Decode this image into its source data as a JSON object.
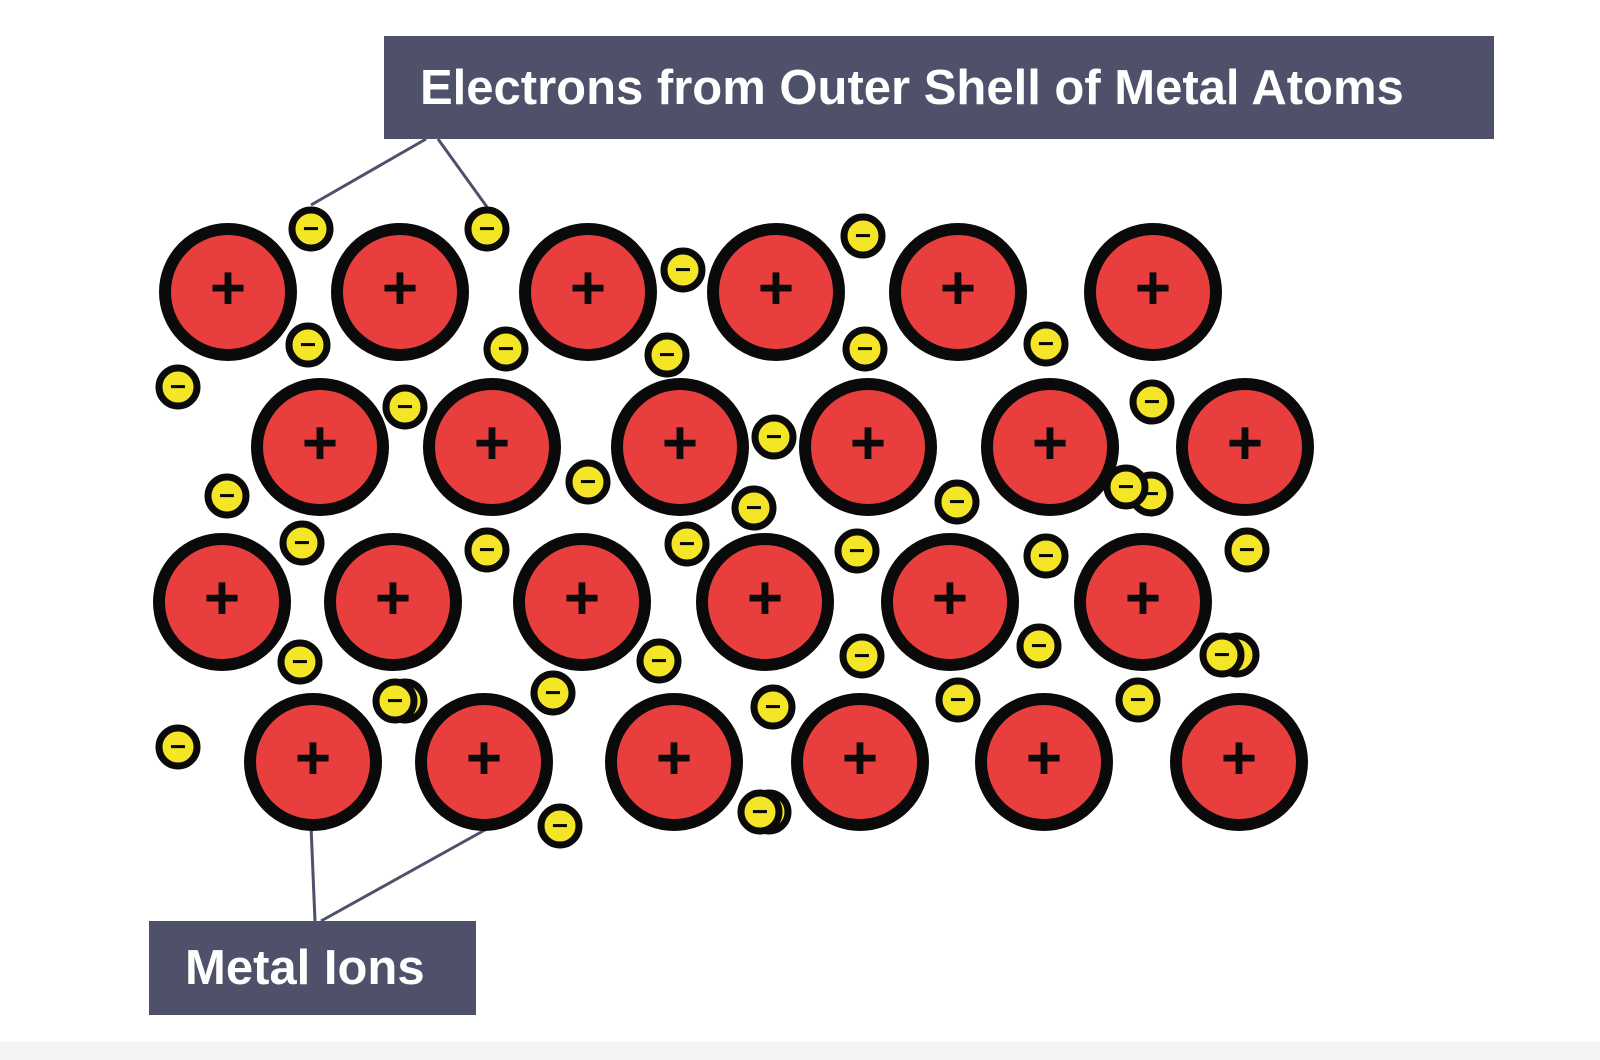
{
  "labels": {
    "electrons": "Electrons from Outer Shell of Metal Atoms",
    "ions": "Metal Ions"
  },
  "symbols": {
    "ion": "+",
    "electron": "−"
  },
  "colors": {
    "ion_fill": "#e83e3e",
    "electron_fill": "#f4e526",
    "outline": "#0a0a0a",
    "label_bg": "#4f5069",
    "label_text": "#ffffff",
    "leader_line": "#4f5069"
  },
  "counts": {
    "metal_ions": 24,
    "electrons": 41
  }
}
